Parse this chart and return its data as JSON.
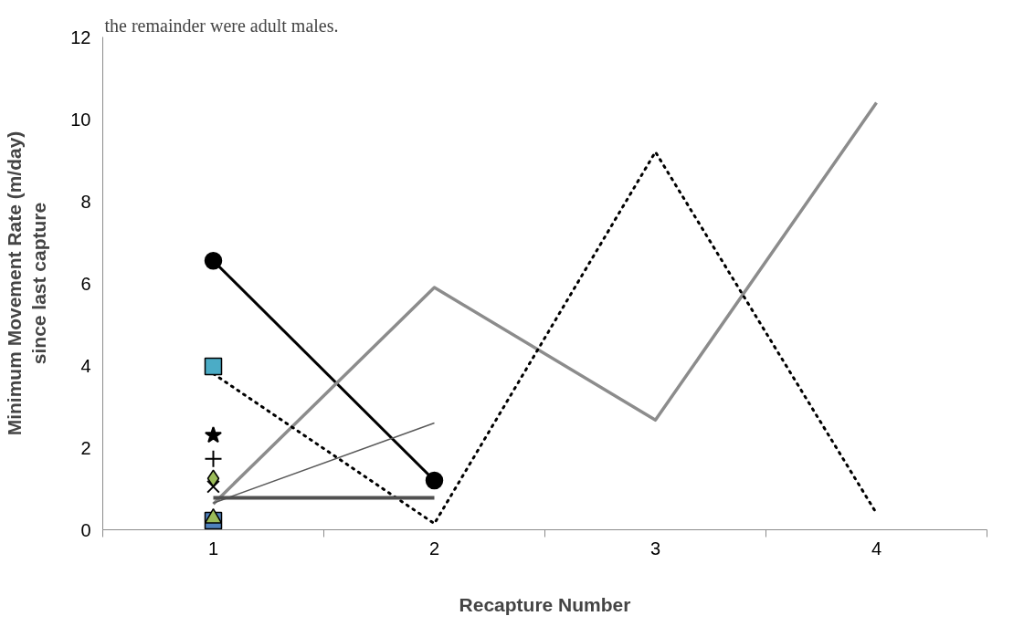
{
  "chart_data": {
    "type": "line",
    "xlabel": "Recapture Number",
    "ylabel": "Minimum Movement Rate (m/day)\nsince last capture",
    "annotations": [
      "the remainder were adult males."
    ],
    "categories": [
      "1",
      "2",
      "3",
      "4"
    ],
    "ylim": [
      0,
      12
    ],
    "yticks": [
      0,
      2,
      4,
      6,
      8,
      10,
      12
    ],
    "grid": false,
    "series": [
      {
        "color": "#000000",
        "values": [
          6.55,
          1.2,
          null,
          null
        ],
        "marker": "circle",
        "line_style": "solid"
      },
      {
        "color": "#8c8c8c",
        "values": [
          0.63,
          5.9,
          2.67,
          10.4
        ],
        "marker": "none",
        "line_style": "solid"
      },
      {
        "color": "#000000",
        "values": [
          3.8,
          0.15,
          9.2,
          0.4
        ],
        "marker": "none",
        "line_style": "dotted"
      },
      {
        "color": "#595959",
        "values": [
          0.65,
          2.6,
          null,
          null
        ],
        "marker": "none",
        "line_style": "solid"
      },
      {
        "color": "#505050",
        "values": [
          0.78,
          0.78,
          null,
          null
        ],
        "marker": "none",
        "line_style": "solid"
      },
      {
        "type": "scatter",
        "color": "#4bacc6",
        "values": [
          3.98,
          null,
          null,
          null
        ],
        "marker": "square"
      },
      {
        "type": "scatter",
        "color": "#000000",
        "values": [
          2.3,
          null,
          null,
          null
        ],
        "marker": "star"
      },
      {
        "type": "scatter",
        "color": "#000000",
        "values": [
          1.73,
          null,
          null,
          null
        ],
        "marker": "cross"
      },
      {
        "type": "scatter",
        "color": "#9bbb59",
        "values": [
          1.25,
          null,
          null,
          null
        ],
        "marker": "diamond"
      },
      {
        "type": "scatter",
        "color": "#000000",
        "values": [
          1.05,
          null,
          null,
          null
        ],
        "marker": "x"
      },
      {
        "type": "scatter",
        "color": "#4f81bd",
        "values": [
          0.22,
          null,
          null,
          null
        ],
        "marker": "square"
      },
      {
        "type": "scatter",
        "color": "#9bbb59",
        "values": [
          0.28,
          null,
          null,
          null
        ],
        "marker": "triangle"
      }
    ]
  }
}
